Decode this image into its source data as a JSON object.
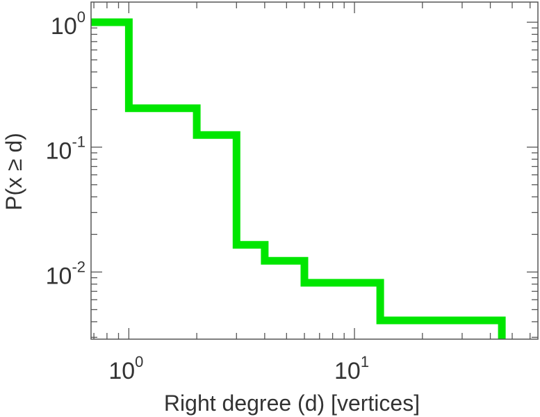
{
  "chart_data": {
    "type": "line",
    "subtype": "step-ccdf",
    "title": "",
    "xlabel": "Right degree (d) [vertices]",
    "ylabel": "P(x ≥ d)",
    "xscale": "log",
    "yscale": "log",
    "xlim": [
      0.68,
      65
    ],
    "ylim": [
      0.0029,
      1.45
    ],
    "grid": false,
    "legend": "none",
    "x_ticks": [
      {
        "value": 1,
        "base": "10",
        "exp": "0"
      },
      {
        "value": 10,
        "base": "10",
        "exp": "1"
      }
    ],
    "y_ticks": [
      {
        "value": 1,
        "base": "10",
        "exp": "0"
      },
      {
        "value": 0.1,
        "base": "10",
        "exp": "-1"
      },
      {
        "value": 0.01,
        "base": "10",
        "exp": "-2"
      }
    ],
    "series": [
      {
        "color": "#00e600",
        "points": [
          {
            "x": 0.68,
            "y": 1.0
          },
          {
            "x": 1,
            "y": 1.0
          },
          {
            "x": 1,
            "y": 0.205
          },
          {
            "x": 2,
            "y": 0.205
          },
          {
            "x": 2,
            "y": 0.125
          },
          {
            "x": 3,
            "y": 0.125
          },
          {
            "x": 3,
            "y": 0.0165
          },
          {
            "x": 4,
            "y": 0.0165
          },
          {
            "x": 4,
            "y": 0.0123
          },
          {
            "x": 6,
            "y": 0.0123
          },
          {
            "x": 6,
            "y": 0.0082
          },
          {
            "x": 13,
            "y": 0.0082
          },
          {
            "x": 13,
            "y": 0.0041
          },
          {
            "x": 45,
            "y": 0.0041
          },
          {
            "x": 45,
            "y": 0.0029
          }
        ]
      }
    ]
  }
}
